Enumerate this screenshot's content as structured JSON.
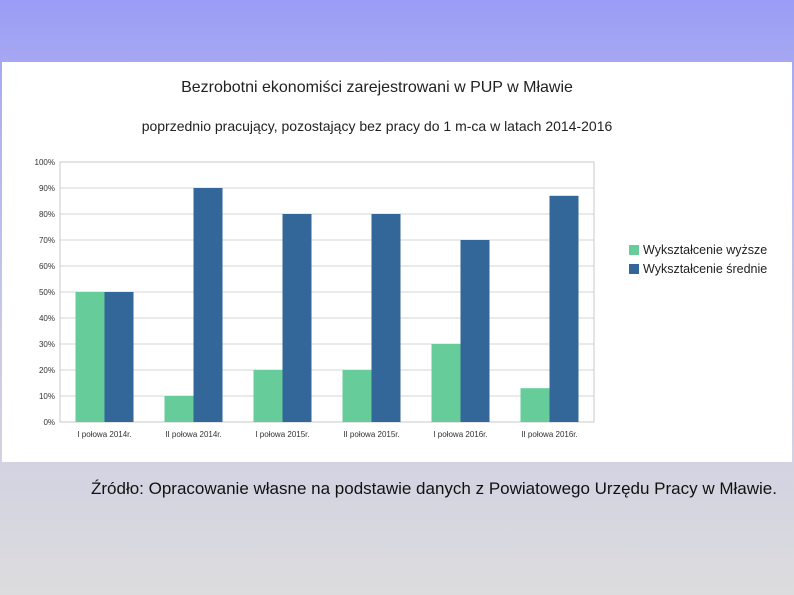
{
  "chart_data": {
    "type": "bar",
    "title": "Bezrobotni ekonomiści zarejestrowani w PUP w Mławie",
    "subtitle": "poprzednio pracujący, pozostający bez pracy do 1 m-ca w latach 2014-2016",
    "categories": [
      "I połowa 2014r.",
      "II połowa 2014r.",
      "I połowa 2015r.",
      "II połowa 2015r.",
      "I połowa 2016r.",
      "II połowa 2016r."
    ],
    "series": [
      {
        "name": "Wykształcenie wyższe",
        "color": "#66cc99",
        "values": [
          50,
          10,
          20,
          20,
          30,
          13
        ]
      },
      {
        "name": "Wykształcenie średnie",
        "color": "#336699",
        "values": [
          50,
          90,
          80,
          80,
          70,
          87
        ]
      }
    ],
    "ylim": [
      0,
      100
    ],
    "yticks": [
      "0%",
      "10%",
      "20%",
      "30%",
      "40%",
      "50%",
      "60%",
      "70%",
      "80%",
      "90%",
      "100%"
    ],
    "grid": true,
    "legend_position": "right"
  },
  "footer": {
    "source": "Źródło: Opracowanie własne na podstawie danych z Powiatowego Urzędu Pracy w Mławie."
  }
}
